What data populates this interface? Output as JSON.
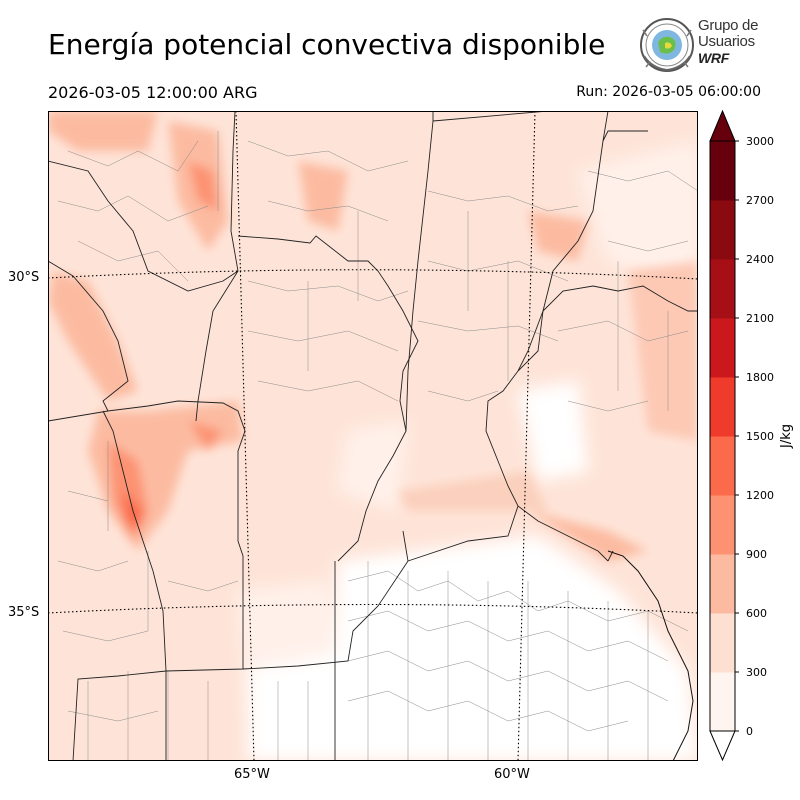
{
  "header": {
    "title": "Energía potencial convectiva disponible",
    "valid_time": "2026-03-05 12:00:00 ARG",
    "run_time": "Run: 2026-03-05 06:00:00"
  },
  "logo": {
    "line1": "Grupo de",
    "line2": "Usuarios",
    "line3": "WRF",
    "icon": "globe-seal-icon"
  },
  "axes": {
    "lat_labels": [
      "30°S",
      "35°S"
    ],
    "lon_labels": [
      "65°W",
      "60°W"
    ]
  },
  "colorbar": {
    "unit": "J/kg",
    "ticks": [
      "0",
      "300",
      "600",
      "900",
      "1200",
      "1500",
      "1800",
      "2100",
      "2400",
      "2700",
      "3000"
    ],
    "colors": [
      "#fff5f0",
      "#fee0d2",
      "#fcbba1",
      "#fc9272",
      "#fb6a4a",
      "#ef3b2c",
      "#cb181d",
      "#a50f15",
      "#8a0a10",
      "#67000d"
    ]
  }
}
